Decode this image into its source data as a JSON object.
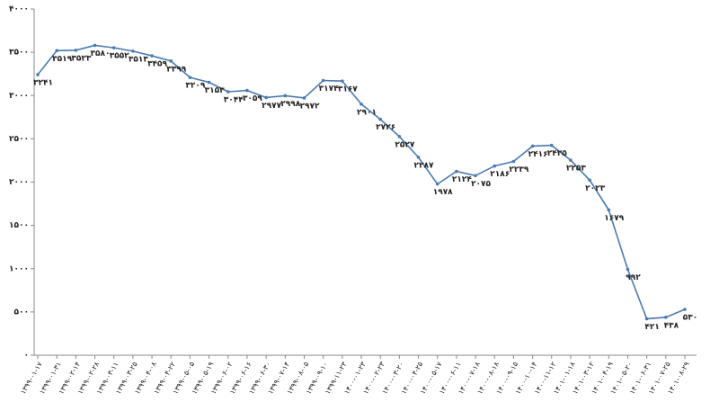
{
  "chart_data": {
    "type": "line",
    "categories": [
      "۱۳۹۹-۰۱-۱۷",
      "۱۳۹۹-۰۱-۳۱",
      "۱۳۹۹-۰۲-۱۴",
      "۱۳۹۹-۰۲-۲۸",
      "۱۳۹۹-۰۳-۱۱",
      "۱۳۹۹-۰۳-۲۵",
      "۱۳۹۹-۰۴-۰۸",
      "۱۳۹۹-۰۴-۲۲",
      "۱۳۹۹-۰۵-۰۵",
      "۱۳۹۹-۰۵-۱۹",
      "۱۳۹۹-۰۶-۰۲",
      "۱۳۹۹-۰۶-۱۶",
      "۱۳۹۹-۰۶-۳۰",
      "۱۳۹۹-۰۷-۱۴",
      "۱۳۹۹-۰۸-۰۵",
      "۱۳۹۹-۰۹-۱۰",
      "۱۳۹۹-۱۱-۲۳",
      "۱۴۰۰-۰۱-۲۳",
      "۱۴۰۰-۰۲-۲۳",
      "۱۴۰۰-۰۳-۲۰",
      "۱۴۰۰-۰۴-۲۵",
      "۱۴۰۰-۰۵-۱۷",
      "۱۴۰۰-۰۶-۱۱",
      "۱۴۰۰-۰۷-۱۸",
      "۱۴۰۰-۰۸-۱۸",
      "۱۴۰۰-۰۹-۱۵",
      "۱۴۰۰-۱۰-۱۴",
      "۱۴۰۰-۱۱-۱۲",
      "۱۴۰۱-۰۱-۱۸",
      "۱۴۰۱-۰۳-۱۲",
      "۱۴۰۱-۰۴-۱۹",
      "۱۴۰۱-۰۵-۲۰",
      "۱۴۰۱-۰۶-۳۱",
      "۱۴۰۱-۰۷-۲۵",
      "۱۴۰۱-۰۸-۲۹"
    ],
    "values": [
      3241,
      3519,
      3523,
      3580,
      3552,
      3513,
      3459,
      3399,
      3209,
      3153,
      3044,
      3059,
      2977,
      2998,
      2972,
      3174,
      3167,
      2901,
      2726,
      2527,
      2287,
      1978,
      2124,
      2075,
      2186,
      2239,
      2416,
      2425,
      2253,
      2023,
      1679,
      992,
      421,
      438,
      530
    ],
    "value_labels": [
      "۳۲۴۱",
      "۳۵۱۹",
      "۳۵۲۳",
      "۳۵۸۰",
      "۳۵۵۲",
      "۳۵۱۳",
      "۳۴۵۹",
      "۳۳۹۹",
      "۳۲۰۹",
      "۳۱۵۳",
      "۳۰۴۴",
      "۳۰۵۹",
      "۲۹۷۷",
      "۲۹۹۸",
      "۲۹۷۲",
      "۳۱۷۴",
      "۳۱۶۷",
      "۲۹۰۱",
      "۲۷۲۶",
      "۲۵۲۷",
      "۲۲۸۷",
      "۱۹۷۸",
      "۲۱۲۴",
      "۲۰۷۵",
      "۲۱۸۶",
      "۲۲۳۹",
      "۲۴۱۶",
      "۲۴۲۵",
      "۲۲۵۳",
      "۲۰۲۳",
      "۱۶۷۹",
      "۹۹۲",
      "۴۲۱",
      "۴۳۸",
      "۵۳۰"
    ],
    "color": "#4a7ab5",
    "ylim": [
      0,
      4000
    ],
    "yticks": [
      {
        "value": 0,
        "label": "۰"
      },
      {
        "value": 500,
        "label": "۵۰۰"
      },
      {
        "value": 1000,
        "label": "۱۰۰۰"
      },
      {
        "value": 1500,
        "label": "۱۵۰۰"
      },
      {
        "value": 2000,
        "label": "۲۰۰۰"
      },
      {
        "value": 2500,
        "label": "۲۵۰۰"
      },
      {
        "value": 3000,
        "label": "۳۰۰۰"
      },
      {
        "value": 3500,
        "label": "۳۵۰۰"
      },
      {
        "value": 4000,
        "label": "۴۰۰۰"
      }
    ]
  }
}
